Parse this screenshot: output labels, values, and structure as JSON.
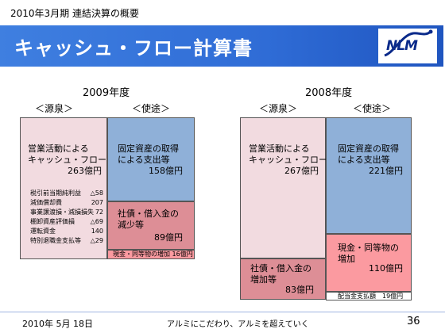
{
  "header": {
    "subtitle": "2010年3月期 連結決算の概要",
    "title": "キャッシュ・フロー計算書",
    "logo_text": "NLM"
  },
  "panels": {
    "y2009": {
      "year": "2009年度",
      "source_label": "＜源泉＞",
      "use_label": "＜使途＞",
      "operating_cf_line1": "営業活動による",
      "operating_cf_line2": "キャッシュ・フロー",
      "operating_cf_value": "263億円",
      "breakdown": [
        {
          "label": "税引前当期純利益",
          "value": "△58"
        },
        {
          "label": "減価償却費",
          "value": "207"
        },
        {
          "label": "事業譲渡損・減損損失",
          "value": "72"
        },
        {
          "label": "棚卸資産評価損",
          "value": "△69"
        },
        {
          "label": "運転資金",
          "value": "140"
        },
        {
          "label": "特別退職金支払等",
          "value": "△29"
        }
      ],
      "capex_line1": "固定資産の取得",
      "capex_line2": "による支出等",
      "capex_value": "158億円",
      "debt_line1": "社債・借入金の",
      "debt_line2": "減少等",
      "debt_value": "89億円",
      "cash_increase": "現金・同等物の増加 16億円"
    },
    "y2008": {
      "year": "2008年度",
      "source_label": "＜源泉＞",
      "use_label": "＜使途＞",
      "operating_cf_line1": "営業活動による",
      "operating_cf_line2": "キャッシュ・フロー",
      "operating_cf_value": "267億円",
      "capex_line1": "固定資産の取得",
      "capex_line2": "による支出等",
      "capex_value": "221億円",
      "cash_line1": "現金・同等物の",
      "cash_line2": "増加",
      "cash_value": "110億円",
      "debt_line1": "社債・借入金の",
      "debt_line2": "増加等",
      "debt_value": "83億円",
      "dividend": "配当金支払額　19億円"
    }
  },
  "footer": {
    "date": "2010年 5月 18日",
    "slogan": "アルミにこだわり、アルミを超えていく",
    "page": "36"
  }
}
